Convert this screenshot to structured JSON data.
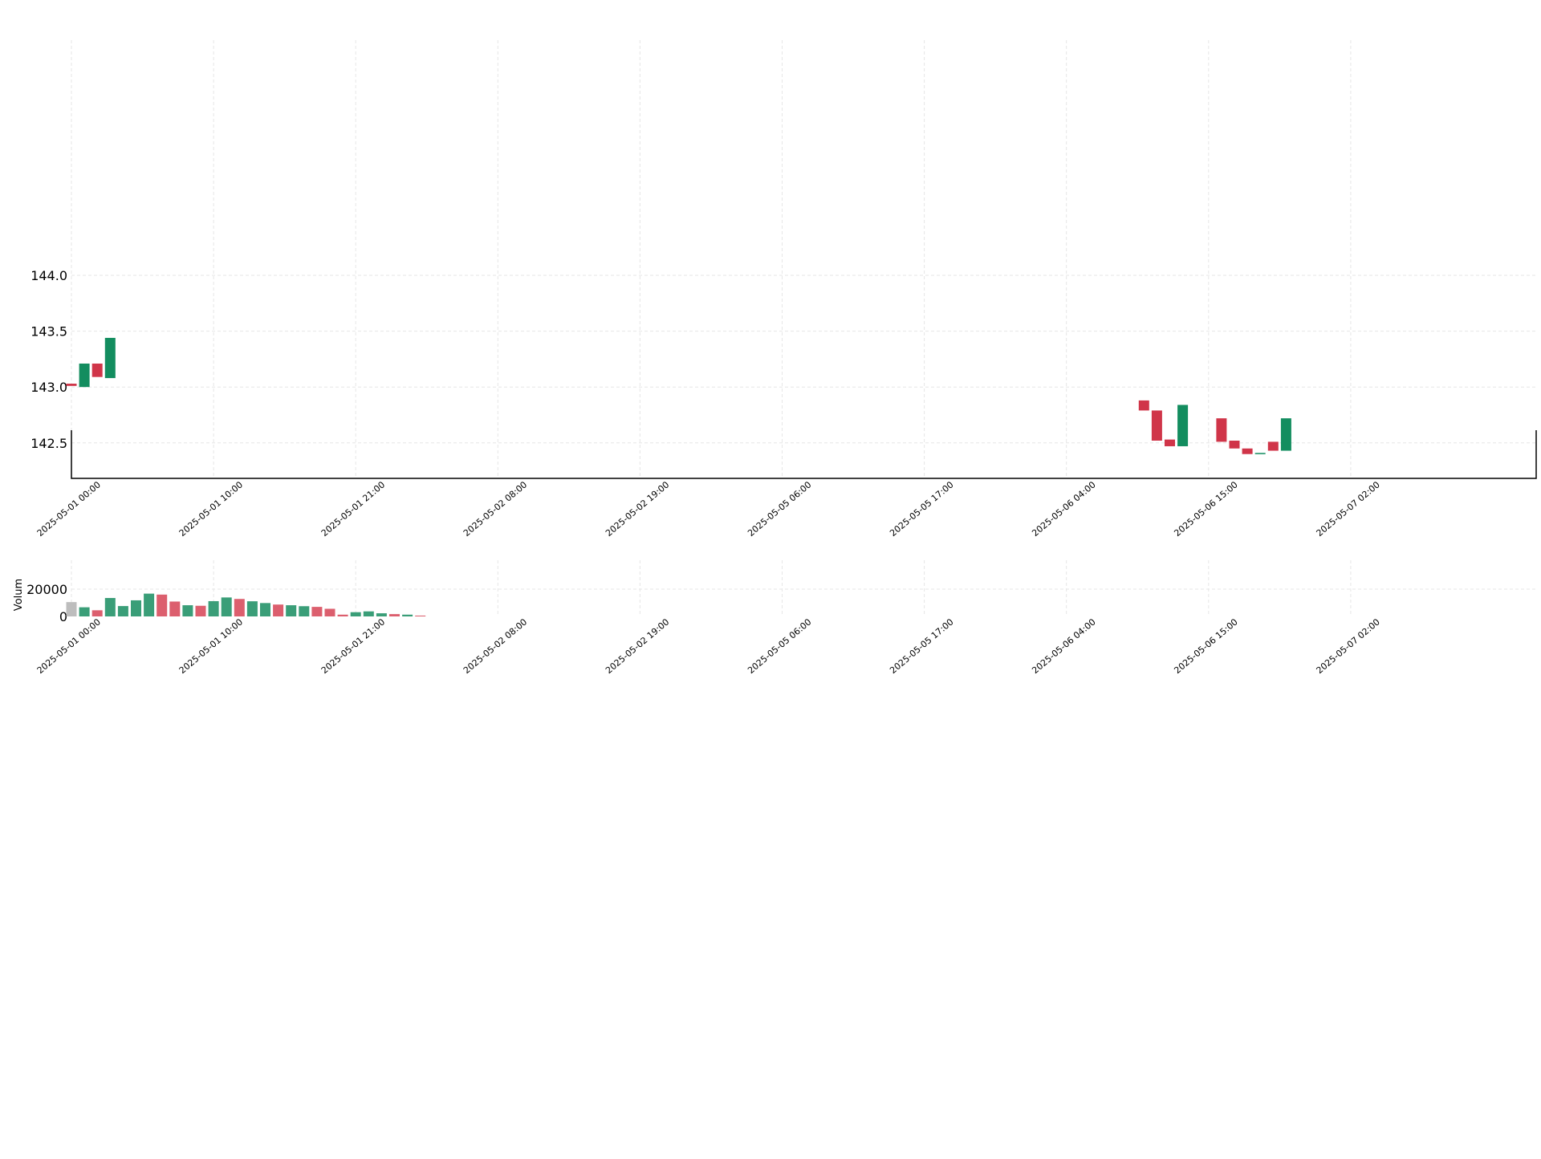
{
  "colors": {
    "up": "#138d5f",
    "down": "#d03549",
    "volume_up": "#3a9e78",
    "volume_down": "#dc5f6e",
    "volume_first": "#bdbdbd",
    "grid": "#e6e6e6",
    "axis": "#000000"
  },
  "chart_data": [
    {
      "type": "candlestick",
      "panel": "price",
      "x_ticks": [
        "2025-05-01 00:00",
        "2025-05-01 10:00",
        "2025-05-01 21:00",
        "2025-05-02 08:00",
        "2025-05-02 19:00",
        "2025-05-05 06:00",
        "2025-05-05 17:00",
        "2025-05-06 04:00",
        "2025-05-06 15:00",
        "2025-05-07 02:00"
      ],
      "y_ticks": [
        142.5,
        143.0,
        143.5,
        144.0
      ],
      "ylabel": "",
      "grid": true,
      "candles": [
        {
          "i": 0,
          "open": 143.03,
          "close": 143.01
        },
        {
          "i": 1,
          "open": 143.0,
          "close": 143.21
        },
        {
          "i": 2,
          "open": 143.21,
          "close": 143.09
        },
        {
          "i": 3,
          "open": 143.08,
          "close": 143.44
        },
        {
          "i": 83,
          "open": 142.88,
          "close": 142.79
        },
        {
          "i": 84,
          "open": 142.79,
          "close": 142.52
        },
        {
          "i": 85,
          "open": 142.53,
          "close": 142.47
        },
        {
          "i": 86,
          "open": 142.47,
          "close": 142.84
        },
        {
          "i": 89,
          "open": 142.72,
          "close": 142.51
        },
        {
          "i": 90,
          "open": 142.52,
          "close": 142.45
        },
        {
          "i": 91,
          "open": 142.45,
          "close": 142.4
        },
        {
          "i": 92,
          "open": 142.4,
          "close": 142.41
        },
        {
          "i": 93,
          "open": 142.51,
          "close": 142.43
        },
        {
          "i": 94,
          "open": 142.43,
          "close": 142.72
        }
      ]
    },
    {
      "type": "bar",
      "panel": "volume",
      "ylabel": "Volum",
      "y_ticks": [
        0,
        20000
      ],
      "x_ticks": [
        "2025-05-01 00:00",
        "2025-05-01 10:00",
        "2025-05-01 21:00",
        "2025-05-02 08:00",
        "2025-05-02 19:00",
        "2025-05-05 06:00",
        "2025-05-05 17:00",
        "2025-05-06 04:00",
        "2025-05-06 15:00",
        "2025-05-07 02:00"
      ],
      "grid": true,
      "bars": [
        {
          "i": 0,
          "value": 10500,
          "dir": "first"
        },
        {
          "i": 1,
          "value": 6700,
          "dir": "up"
        },
        {
          "i": 2,
          "value": 4500,
          "dir": "down"
        },
        {
          "i": 3,
          "value": 13500,
          "dir": "up"
        },
        {
          "i": 4,
          "value": 7600,
          "dir": "up"
        },
        {
          "i": 5,
          "value": 11800,
          "dir": "up"
        },
        {
          "i": 6,
          "value": 16700,
          "dir": "up"
        },
        {
          "i": 7,
          "value": 16000,
          "dir": "down"
        },
        {
          "i": 8,
          "value": 10900,
          "dir": "down"
        },
        {
          "i": 9,
          "value": 8200,
          "dir": "up"
        },
        {
          "i": 10,
          "value": 7800,
          "dir": "down"
        },
        {
          "i": 11,
          "value": 11200,
          "dir": "up"
        },
        {
          "i": 12,
          "value": 13900,
          "dir": "up"
        },
        {
          "i": 13,
          "value": 12800,
          "dir": "down"
        },
        {
          "i": 14,
          "value": 11100,
          "dir": "up"
        },
        {
          "i": 15,
          "value": 9800,
          "dir": "up"
        },
        {
          "i": 16,
          "value": 8700,
          "dir": "down"
        },
        {
          "i": 17,
          "value": 8200,
          "dir": "up"
        },
        {
          "i": 18,
          "value": 7500,
          "dir": "up"
        },
        {
          "i": 19,
          "value": 7000,
          "dir": "down"
        },
        {
          "i": 20,
          "value": 5600,
          "dir": "down"
        },
        {
          "i": 21,
          "value": 1300,
          "dir": "down"
        },
        {
          "i": 22,
          "value": 3100,
          "dir": "up"
        },
        {
          "i": 23,
          "value": 3700,
          "dir": "up"
        },
        {
          "i": 24,
          "value": 2300,
          "dir": "up"
        },
        {
          "i": 25,
          "value": 1700,
          "dir": "down"
        },
        {
          "i": 26,
          "value": 1300,
          "dir": "up"
        },
        {
          "i": 27,
          "value": 600,
          "dir": "down"
        }
      ]
    }
  ]
}
